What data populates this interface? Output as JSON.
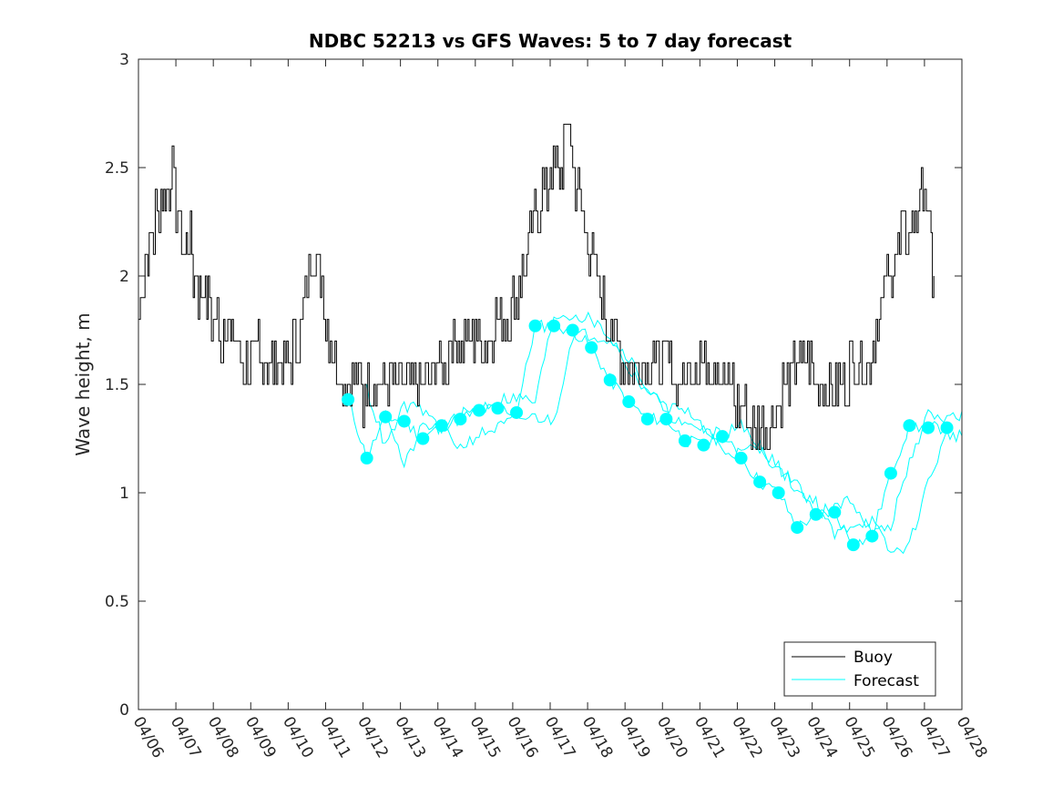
{
  "chart_data": {
    "type": "line",
    "title": "NDBC 52213 vs GFS Waves: 5 to 7 day forecast",
    "xlabel": "",
    "ylabel": "Wave height, m",
    "ylim": [
      0,
      3
    ],
    "yticks": [
      "0",
      "0.5",
      "1",
      "1.5",
      "2",
      "2.5",
      "3"
    ],
    "xlim": [
      "04/06",
      "04/28"
    ],
    "xticks": [
      "04/06",
      "04/07",
      "04/08",
      "04/09",
      "04/10",
      "04/11",
      "04/12",
      "04/13",
      "04/14",
      "04/15",
      "04/16",
      "04/17",
      "04/18",
      "04/19",
      "04/20",
      "04/21",
      "04/22",
      "04/23",
      "04/24",
      "04/25",
      "04/26",
      "04/27",
      "04/28"
    ],
    "grid": false,
    "legend": {
      "position": "bottom-right",
      "entries": [
        "Buoy",
        "Forecast"
      ]
    },
    "colors": {
      "buoy": "#000000",
      "forecast": "#00ffff"
    },
    "series": [
      {
        "name": "Buoy",
        "x_day_of_april": [
          6.0,
          6.1,
          6.25,
          6.4,
          6.5,
          6.6,
          6.75,
          6.9,
          7.0,
          7.1,
          7.2,
          7.35,
          7.5,
          7.6,
          7.75,
          7.9,
          8.0,
          8.1,
          8.2,
          8.35,
          8.5,
          8.65,
          8.8,
          9.0,
          9.2,
          9.4,
          9.6,
          9.8,
          10.0,
          10.25,
          10.4,
          10.5,
          10.6,
          10.75,
          10.9,
          11.0,
          11.25,
          11.5,
          11.75,
          12.0,
          12.25,
          12.5,
          12.75,
          13.0,
          13.25,
          13.5,
          13.75,
          14.0,
          14.25,
          14.5,
          14.75,
          15.0,
          15.25,
          15.5,
          15.75,
          16.0,
          16.25,
          16.5,
          16.75,
          17.0,
          17.25,
          17.4,
          17.5,
          17.6,
          17.75,
          18.0,
          18.25,
          18.5,
          18.75,
          19.0,
          19.25,
          19.5,
          19.75,
          20.0,
          20.25,
          20.5,
          20.75,
          21.0,
          21.25,
          21.5,
          21.75,
          22.0,
          22.25,
          22.5,
          22.75,
          23.0,
          23.25,
          23.5,
          23.75,
          24.0,
          24.25,
          24.5,
          24.75,
          25.0,
          25.25,
          25.5,
          25.75,
          26.0,
          26.25,
          26.5,
          26.75,
          27.0,
          27.1,
          27.25
        ],
        "values": [
          1.8,
          2.0,
          2.1,
          2.2,
          2.3,
          2.4,
          2.35,
          2.5,
          2.3,
          2.2,
          2.1,
          2.2,
          2.0,
          1.9,
          1.95,
          1.85,
          1.8,
          1.75,
          1.7,
          1.8,
          1.7,
          1.65,
          1.6,
          1.6,
          1.65,
          1.55,
          1.6,
          1.55,
          1.6,
          1.7,
          1.85,
          1.95,
          2.1,
          2.05,
          1.95,
          1.8,
          1.6,
          1.5,
          1.45,
          1.45,
          1.5,
          1.5,
          1.55,
          1.45,
          1.45,
          1.5,
          1.45,
          1.6,
          1.65,
          1.7,
          1.7,
          1.75,
          1.7,
          1.75,
          1.8,
          1.85,
          2.0,
          2.2,
          2.35,
          2.45,
          2.5,
          2.6,
          2.7,
          2.5,
          2.35,
          2.15,
          1.95,
          1.8,
          1.7,
          1.6,
          1.55,
          1.6,
          1.65,
          1.6,
          1.55,
          1.5,
          1.6,
          1.65,
          1.6,
          1.55,
          1.5,
          1.4,
          1.35,
          1.3,
          1.3,
          1.35,
          1.5,
          1.55,
          1.6,
          1.55,
          1.5,
          1.45,
          1.5,
          1.55,
          1.55,
          1.6,
          1.8,
          2.0,
          2.1,
          2.2,
          2.25,
          2.4,
          2.2,
          2.0
        ]
      },
      {
        "name": "Forecast",
        "x_day_of_april": [
          11.6,
          12.1,
          12.6,
          13.1,
          13.6,
          14.1,
          14.6,
          15.1,
          15.6,
          16.1,
          16.6,
          17.1,
          17.6,
          18.1,
          18.6,
          19.1,
          19.6,
          20.1,
          20.6,
          21.1,
          21.6,
          22.1,
          22.6,
          23.1,
          23.6,
          24.1,
          24.6,
          25.1,
          25.6,
          26.1,
          26.6,
          27.1,
          27.6
        ],
        "values": [
          1.43,
          1.16,
          1.35,
          1.33,
          1.25,
          1.31,
          1.34,
          1.38,
          1.39,
          1.37,
          1.77,
          1.77,
          1.75,
          1.67,
          1.52,
          1.42,
          1.34,
          1.34,
          1.24,
          1.22,
          1.26,
          1.16,
          1.05,
          1.0,
          0.84,
          0.9,
          0.91,
          0.76,
          0.8,
          1.09,
          1.31,
          1.3,
          1.3
        ]
      }
    ]
  }
}
